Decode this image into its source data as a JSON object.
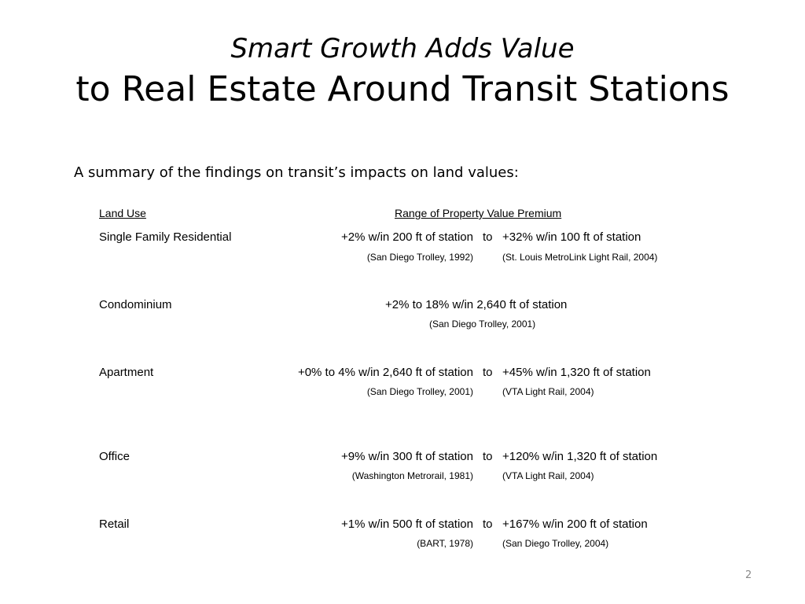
{
  "slide": {
    "title_line1": "Smart Growth Adds Value",
    "title_line2": "to Real Estate Around Transit Stations",
    "subtitle": "A summary of the findings on transit’s impacts on land values:",
    "page_number": "2"
  },
  "table": {
    "header_land_use": "Land Use",
    "header_range": "Range of Property Value Premium",
    "rows": [
      {
        "land_use": "Single Family Residential",
        "low": "+2% w/in 200 ft of station",
        "to": "to",
        "high": "+32% w/in 100 ft of station",
        "low_source": "(San Diego Trolley, 1992)",
        "high_source": "(St. Louis MetroLink Light Rail, 2004)"
      },
      {
        "land_use": "Condominium",
        "value": "+2% to 18% w/in 2,640 ft of station",
        "source": "(San Diego Trolley, 2001)"
      },
      {
        "land_use": "Apartment",
        "low": "+0% to 4% w/in 2,640 ft of station",
        "to": "to",
        "high": "+45% w/in 1,320 ft of station",
        "low_source": "(San Diego Trolley, 2001)",
        "high_source": "(VTA Light Rail, 2004)"
      },
      {
        "land_use": "Office",
        "low": "+9% w/in 300 ft of station",
        "to": "to",
        "high": "+120% w/in 1,320 ft of station",
        "low_source": "(Washington Metrorail, 1981)",
        "high_source": "(VTA Light Rail, 2004)"
      },
      {
        "land_use": "Retail",
        "low": "+1% w/in 500 ft of station",
        "to": "to",
        "high": "+167% w/in 200 ft of station",
        "low_source": "(BART, 1978)",
        "high_source": "(San Diego Trolley, 2004)"
      }
    ]
  }
}
